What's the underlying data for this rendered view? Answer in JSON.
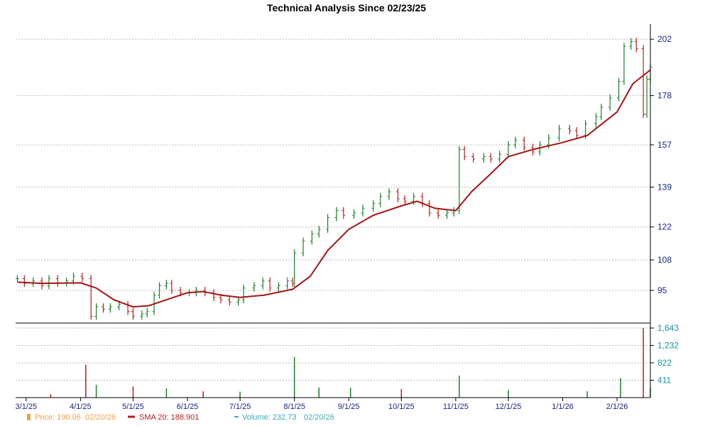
{
  "chart_data": {
    "type": "line",
    "title": "Technical Analysis Since 02/23/25",
    "price_axis": {
      "ticks": [
        95,
        108,
        122,
        139,
        157,
        178,
        202
      ],
      "tick_labels": [
        "95",
        "108",
        "122",
        "139",
        "157",
        "178",
        "202"
      ],
      "range": [
        82,
        206
      ]
    },
    "volume_axis": {
      "ticks": [
        411,
        822,
        1232,
        1643
      ],
      "tick_labels": [
        "411",
        "822",
        "1,232",
        "1,643"
      ],
      "range": [
        0,
        1643
      ]
    },
    "x_axis": {
      "start": "2025-02-23",
      "end": "2026-02-20",
      "ticks": [
        "2025-03-01",
        "2025-04-01",
        "2025-05-01",
        "2025-06-01",
        "2025-07-01",
        "2025-08-01",
        "2025-09-01",
        "2025-10-01",
        "2025-11-01",
        "2025-12-01",
        "2026-01-01",
        "2026-02-01"
      ],
      "tick_labels": [
        "3/1/25",
        "4/1/25",
        "5/1/25",
        "6/1/25",
        "7/1/25",
        "8/1/25",
        "9/1/25",
        "10/1/25",
        "11/1/25",
        "12/1/25",
        "1/1/26",
        "2/1/26"
      ]
    },
    "grid": true,
    "legend_position": "bottom",
    "series": [
      {
        "name": "Price",
        "style": "ohlc",
        "points": [
          [
            "2025-02-24",
            100
          ],
          [
            "2025-02-28",
            98
          ],
          [
            "2025-03-05",
            99
          ],
          [
            "2025-03-10",
            97
          ],
          [
            "2025-03-14",
            100
          ],
          [
            "2025-03-19",
            98
          ],
          [
            "2025-03-24",
            99
          ],
          [
            "2025-03-28",
            101
          ],
          [
            "2025-04-02",
            100
          ],
          [
            "2025-04-07",
            84
          ],
          [
            "2025-04-10",
            88
          ],
          [
            "2025-04-14",
            87
          ],
          [
            "2025-04-18",
            88
          ],
          [
            "2025-04-23",
            89
          ],
          [
            "2025-04-28",
            86
          ],
          [
            "2025-05-01",
            84
          ],
          [
            "2025-05-06",
            85
          ],
          [
            "2025-05-09",
            86
          ],
          [
            "2025-05-13",
            93
          ],
          [
            "2025-05-16",
            97
          ],
          [
            "2025-05-20",
            98
          ],
          [
            "2025-05-23",
            95
          ],
          [
            "2025-05-28",
            94
          ],
          [
            "2025-06-02",
            94
          ],
          [
            "2025-06-06",
            95
          ],
          [
            "2025-06-11",
            94
          ],
          [
            "2025-06-16",
            92
          ],
          [
            "2025-06-20",
            91
          ],
          [
            "2025-06-25",
            90
          ],
          [
            "2025-06-30",
            91
          ],
          [
            "2025-07-03",
            96
          ],
          [
            "2025-07-09",
            97
          ],
          [
            "2025-07-14",
            99
          ],
          [
            "2025-07-18",
            96
          ],
          [
            "2025-07-23",
            97
          ],
          [
            "2025-07-28",
            99
          ],
          [
            "2025-07-31",
            98
          ],
          [
            "2025-08-01",
            111
          ],
          [
            "2025-08-06",
            116
          ],
          [
            "2025-08-11",
            119
          ],
          [
            "2025-08-15",
            121
          ],
          [
            "2025-08-20",
            126
          ],
          [
            "2025-08-25",
            129
          ],
          [
            "2025-08-29",
            127
          ],
          [
            "2025-09-04",
            128
          ],
          [
            "2025-09-09",
            130
          ],
          [
            "2025-09-15",
            132
          ],
          [
            "2025-09-19",
            135
          ],
          [
            "2025-09-24",
            137
          ],
          [
            "2025-09-29",
            134
          ],
          [
            "2025-10-03",
            133
          ],
          [
            "2025-10-08",
            135
          ],
          [
            "2025-10-13",
            132
          ],
          [
            "2025-10-17",
            128
          ],
          [
            "2025-10-22",
            127
          ],
          [
            "2025-10-27",
            128
          ],
          [
            "2025-10-31",
            129
          ],
          [
            "2025-11-03",
            155
          ],
          [
            "2025-11-06",
            152
          ],
          [
            "2025-11-11",
            151
          ],
          [
            "2025-11-17",
            152
          ],
          [
            "2025-11-21",
            151
          ],
          [
            "2025-11-26",
            153
          ],
          [
            "2025-12-01",
            157
          ],
          [
            "2025-12-05",
            159
          ],
          [
            "2025-12-10",
            156
          ],
          [
            "2025-12-15",
            154
          ],
          [
            "2025-12-19",
            157
          ],
          [
            "2025-12-24",
            160
          ],
          [
            "2025-12-30",
            164
          ],
          [
            "2026-01-05",
            163
          ],
          [
            "2026-01-09",
            161
          ],
          [
            "2026-01-14",
            166
          ],
          [
            "2026-01-20",
            169
          ],
          [
            "2026-01-23",
            173
          ],
          [
            "2026-01-28",
            177
          ],
          [
            "2026-02-02",
            184
          ],
          [
            "2026-02-05",
            199
          ],
          [
            "2026-02-09",
            201
          ],
          [
            "2026-02-12",
            198
          ],
          [
            "2026-02-16",
            170
          ],
          [
            "2026-02-18",
            185
          ],
          [
            "2026-02-20",
            190.06
          ]
        ]
      },
      {
        "name": "SMA 20",
        "style": "line",
        "points": [
          [
            "2025-02-24",
            98.5
          ],
          [
            "2025-03-10",
            98
          ],
          [
            "2025-04-01",
            98.2
          ],
          [
            "2025-04-10",
            96
          ],
          [
            "2025-04-20",
            91
          ],
          [
            "2025-05-01",
            88
          ],
          [
            "2025-05-10",
            88.5
          ],
          [
            "2025-05-20",
            91
          ],
          [
            "2025-06-01",
            94
          ],
          [
            "2025-06-10",
            94.5
          ],
          [
            "2025-06-20",
            93
          ],
          [
            "2025-07-01",
            92
          ],
          [
            "2025-07-15",
            93
          ],
          [
            "2025-07-31",
            95.5
          ],
          [
            "2025-08-10",
            101
          ],
          [
            "2025-08-20",
            112
          ],
          [
            "2025-09-01",
            121
          ],
          [
            "2025-09-15",
            127
          ],
          [
            "2025-10-01",
            131
          ],
          [
            "2025-10-10",
            133
          ],
          [
            "2025-10-20",
            130
          ],
          [
            "2025-11-01",
            129
          ],
          [
            "2025-11-10",
            137
          ],
          [
            "2025-11-20",
            144
          ],
          [
            "2025-12-01",
            152
          ],
          [
            "2025-12-15",
            155
          ],
          [
            "2026-01-01",
            158
          ],
          [
            "2026-01-15",
            161
          ],
          [
            "2026-02-01",
            171
          ],
          [
            "2026-02-10",
            183
          ],
          [
            "2026-02-20",
            188.901
          ]
        ]
      },
      {
        "name": "Volume",
        "style": "bar",
        "points": [
          [
            "2025-03-15",
            80
          ],
          [
            "2025-04-04",
            780
          ],
          [
            "2025-04-10",
            300
          ],
          [
            "2025-05-01",
            260
          ],
          [
            "2025-05-20",
            220
          ],
          [
            "2025-06-10",
            150
          ],
          [
            "2025-07-01",
            140
          ],
          [
            "2025-08-01",
            960
          ],
          [
            "2025-08-15",
            240
          ],
          [
            "2025-09-02",
            230
          ],
          [
            "2025-10-01",
            200
          ],
          [
            "2025-11-03",
            520
          ],
          [
            "2025-12-01",
            180
          ],
          [
            "2026-01-15",
            150
          ],
          [
            "2026-02-03",
            460
          ],
          [
            "2026-02-16",
            1643
          ],
          [
            "2026-02-20",
            232.73
          ]
        ]
      }
    ]
  },
  "legend": {
    "price": {
      "label": "Price: 190.06",
      "date": "02/20/26",
      "color": "#f0a040"
    },
    "sma": {
      "label": "SMA 20: 188.901",
      "color": "#b71c1c"
    },
    "volume": {
      "label": "Volume: 232.73",
      "date": "02/20/26",
      "color": "#3aa9b5"
    }
  },
  "colors": {
    "up": "#1b7f2a",
    "down": "#b71c1c",
    "sma": "#a31515",
    "grid": "#bdbdbd"
  }
}
